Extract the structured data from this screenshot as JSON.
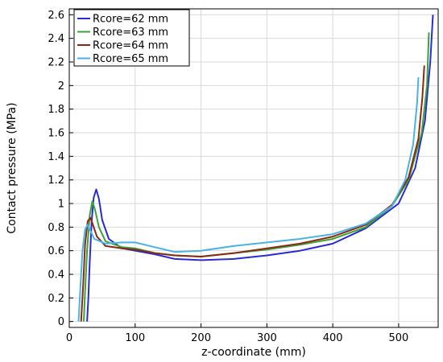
{
  "chart_data": {
    "type": "line",
    "title": "",
    "xlabel": "z-coordinate (mm)",
    "ylabel": "Contact pressure (MPa)",
    "xlim": [
      0,
      560
    ],
    "ylim": [
      -0.05,
      2.65
    ],
    "x_ticks": [
      0,
      100,
      200,
      300,
      400,
      500
    ],
    "y_ticks": [
      0,
      0.2,
      0.4,
      0.6,
      0.8,
      1,
      1.2,
      1.4,
      1.6,
      1.8,
      2,
      2.2,
      2.4,
      2.6
    ],
    "x_tick_labels": [
      "0",
      "100",
      "200",
      "300",
      "400",
      "500"
    ],
    "y_tick_labels": [
      "0",
      "0.2",
      "0.4",
      "0.6",
      "0.8",
      "1",
      "1.2",
      "1.4",
      "1.6",
      "1.8",
      "2",
      "2.2",
      "2.4",
      "2.6"
    ],
    "grid": true,
    "legend_position": "top-left",
    "series": [
      {
        "name": "Rcore=62 mm",
        "color": "#2b2bd6",
        "points": [
          [
            27,
            0
          ],
          [
            29,
            0.2
          ],
          [
            31,
            0.5
          ],
          [
            34,
            0.85
          ],
          [
            37,
            1.05
          ],
          [
            41,
            1.12
          ],
          [
            45,
            1.04
          ],
          [
            50,
            0.86
          ],
          [
            60,
            0.7
          ],
          [
            80,
            0.62
          ],
          [
            100,
            0.6
          ],
          [
            130,
            0.57
          ],
          [
            160,
            0.53
          ],
          [
            200,
            0.52
          ],
          [
            250,
            0.53
          ],
          [
            300,
            0.56
          ],
          [
            350,
            0.6
          ],
          [
            400,
            0.66
          ],
          [
            450,
            0.79
          ],
          [
            500,
            1.0
          ],
          [
            525,
            1.3
          ],
          [
            540,
            1.7
          ],
          [
            548,
            2.2
          ],
          [
            552,
            2.6
          ]
        ]
      },
      {
        "name": "Rcore=63 mm",
        "color": "#3aa33a",
        "points": [
          [
            22,
            0
          ],
          [
            24,
            0.25
          ],
          [
            27,
            0.6
          ],
          [
            31,
            0.9
          ],
          [
            35,
            1.02
          ],
          [
            39,
            0.95
          ],
          [
            45,
            0.8
          ],
          [
            55,
            0.68
          ],
          [
            80,
            0.63
          ],
          [
            100,
            0.62
          ],
          [
            130,
            0.58
          ],
          [
            160,
            0.56
          ],
          [
            200,
            0.55
          ],
          [
            250,
            0.58
          ],
          [
            300,
            0.61
          ],
          [
            350,
            0.65
          ],
          [
            400,
            0.7
          ],
          [
            450,
            0.8
          ],
          [
            490,
            0.98
          ],
          [
            515,
            1.2
          ],
          [
            535,
            1.6
          ],
          [
            543,
            2.0
          ],
          [
            546,
            2.45
          ]
        ]
      },
      {
        "name": "Rcore=64 mm",
        "color": "#8b2a12",
        "points": [
          [
            18,
            0
          ],
          [
            21,
            0.3
          ],
          [
            24,
            0.65
          ],
          [
            28,
            0.85
          ],
          [
            32,
            0.88
          ],
          [
            36,
            0.82
          ],
          [
            42,
            0.72
          ],
          [
            55,
            0.64
          ],
          [
            80,
            0.62
          ],
          [
            100,
            0.61
          ],
          [
            130,
            0.58
          ],
          [
            160,
            0.56
          ],
          [
            200,
            0.55
          ],
          [
            250,
            0.58
          ],
          [
            300,
            0.62
          ],
          [
            350,
            0.66
          ],
          [
            400,
            0.72
          ],
          [
            450,
            0.82
          ],
          [
            490,
            0.99
          ],
          [
            515,
            1.22
          ],
          [
            530,
            1.55
          ],
          [
            536,
            1.9
          ],
          [
            539,
            2.17
          ]
        ]
      },
      {
        "name": "Rcore=65 mm",
        "color": "#4ab3e6",
        "points": [
          [
            14,
            0
          ],
          [
            17,
            0.3
          ],
          [
            20,
            0.6
          ],
          [
            24,
            0.78
          ],
          [
            28,
            0.82
          ],
          [
            32,
            0.77
          ],
          [
            38,
            0.7
          ],
          [
            55,
            0.66
          ],
          [
            80,
            0.67
          ],
          [
            100,
            0.67
          ],
          [
            130,
            0.63
          ],
          [
            160,
            0.59
          ],
          [
            200,
            0.6
          ],
          [
            250,
            0.64
          ],
          [
            300,
            0.67
          ],
          [
            350,
            0.7
          ],
          [
            400,
            0.74
          ],
          [
            450,
            0.83
          ],
          [
            490,
            0.98
          ],
          [
            510,
            1.2
          ],
          [
            522,
            1.5
          ],
          [
            528,
            1.85
          ],
          [
            530,
            2.07
          ]
        ]
      }
    ]
  }
}
